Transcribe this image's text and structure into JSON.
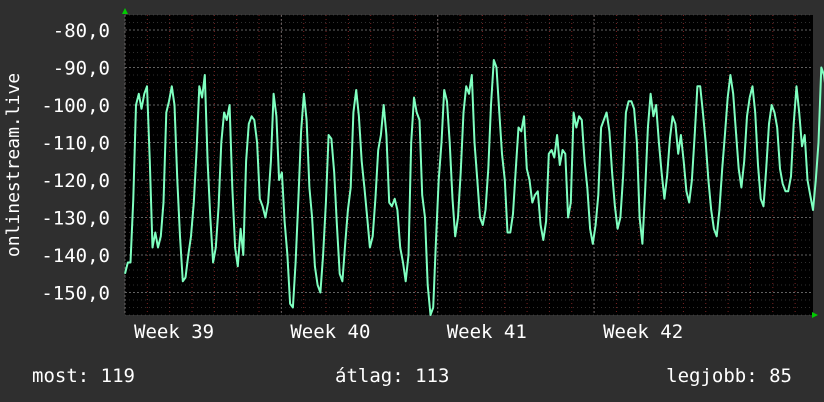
{
  "chart_data": {
    "type": "line",
    "ylabel": "onlinestream.live",
    "ylim": [
      -156,
      -76
    ],
    "y_ticks": [
      -80,
      -90,
      -100,
      -110,
      -120,
      -130,
      -140,
      -150
    ],
    "y_tick_labels": [
      "-80,0",
      "-90,0",
      "-100,0",
      "-110,0",
      "-120,0",
      "-130,0",
      "-140,0",
      "-150,0"
    ],
    "x_range": [
      0,
      4.4
    ],
    "x_ticks": [
      {
        "x": 0,
        "label": "Week 39"
      },
      {
        "x": 1,
        "label": "Week 40"
      },
      {
        "x": 2,
        "label": "Week 41"
      },
      {
        "x": 3,
        "label": "Week 42"
      }
    ],
    "grid": true,
    "series": [
      {
        "color": "#7fffc0",
        "x_step": 0.0176,
        "values": [
          -145,
          -142,
          -142,
          -125,
          -100,
          -97,
          -101,
          -97,
          -95,
          -115,
          -138,
          -134,
          -138,
          -135,
          -126,
          -102,
          -99,
          -95,
          -100,
          -120,
          -135,
          -147,
          -146,
          -140,
          -135,
          -126,
          -112,
          -95,
          -98,
          -92,
          -115,
          -130,
          -142,
          -138,
          -127,
          -110,
          -102,
          -104,
          -100,
          -122,
          -138,
          -143,
          -133,
          -140,
          -115,
          -105,
          -103,
          -104,
          -110,
          -125,
          -127,
          -130,
          -126,
          -115,
          -97,
          -103,
          -120,
          -118,
          -131,
          -140,
          -153,
          -154,
          -142,
          -125,
          -107,
          -97,
          -104,
          -122,
          -130,
          -143,
          -148,
          -150,
          -140,
          -126,
          -108,
          -109,
          -118,
          -132,
          -145,
          -147,
          -137,
          -128,
          -122,
          -102,
          -96,
          -103,
          -115,
          -122,
          -130,
          -138,
          -135,
          -125,
          -112,
          -108,
          -100,
          -108,
          -126,
          -127,
          -125,
          -128,
          -138,
          -142,
          -147,
          -140,
          -110,
          -98,
          -102,
          -104,
          -124,
          -130,
          -148,
          -156,
          -154,
          -136,
          -120,
          -110,
          -96,
          -99,
          -110,
          -125,
          -135,
          -130,
          -118,
          -102,
          -95,
          -97,
          -92,
          -110,
          -120,
          -130,
          -132,
          -128,
          -117,
          -100,
          -88,
          -90,
          -102,
          -113,
          -120,
          -134,
          -134,
          -129,
          -117,
          -106,
          -107,
          -103,
          -117,
          -120,
          -126,
          -124,
          -123,
          -132,
          -136,
          -131,
          -113,
          -112,
          -114,
          -108,
          -116,
          -112,
          -113,
          -130,
          -126,
          -102,
          -106,
          -103,
          -104,
          -115,
          -122,
          -133,
          -137,
          -132,
          -124,
          -106,
          -104,
          -102,
          -107,
          -118,
          -127,
          -133,
          -130,
          -119,
          -102,
          -99,
          -99,
          -101,
          -110,
          -130,
          -137,
          -123,
          -106,
          -97,
          -103,
          -100,
          -110,
          -118,
          -125,
          -119,
          -109,
          -103,
          -105,
          -113,
          -108,
          -115,
          -123,
          -126,
          -120,
          -108,
          -95,
          -95,
          -102,
          -110,
          -120,
          -128,
          -133,
          -135,
          -128,
          -117,
          -108,
          -98,
          -92,
          -97,
          -107,
          -117,
          -122,
          -115,
          -103,
          -98,
          -95,
          -102,
          -116,
          -125,
          -127,
          -117,
          -105,
          -100,
          -102,
          -106,
          -117,
          -121,
          -123,
          -123,
          -119,
          -105,
          -95,
          -102,
          -111,
          -108,
          -120,
          -124,
          -128,
          -120,
          -110,
          -90,
          -92,
          -98,
          -110,
          -120,
          -115,
          -115,
          -110,
          -118,
          -122,
          -121,
          -108,
          -102,
          -97,
          -100,
          -107,
          -114,
          -120,
          -123,
          -119,
          -110,
          -98,
          -99,
          -95,
          -105,
          -113,
          -123,
          -121,
          -111,
          -99,
          -91,
          -98,
          -106,
          -114,
          -121,
          -124,
          -121,
          -108,
          -99,
          -95,
          -105,
          -118,
          -122,
          -117,
          -108,
          -95,
          -93,
          -95,
          -103,
          -112,
          -118,
          -127,
          -130,
          -129,
          -120,
          -110,
          -96,
          -91,
          -93,
          -102,
          -112,
          -118,
          -119,
          -114,
          -109,
          -102,
          -94,
          -96,
          -102,
          -110,
          -118,
          -124,
          -126,
          -120,
          -113,
          -104,
          -94,
          -91,
          -88,
          -92,
          -100,
          -110,
          -120,
          -128,
          -132,
          -122,
          -113,
          -102,
          -92,
          -90,
          -95,
          -104,
          -114,
          -122,
          -128,
          -130,
          -126,
          -118,
          -108,
          -97,
          -91,
          -94,
          -100,
          -108,
          -118,
          -122,
          -122,
          -117,
          -108,
          -99,
          -89,
          -90,
          -100,
          -108,
          -115,
          -126,
          -142,
          -140,
          -135,
          -130,
          -125,
          -119
        ]
      }
    ]
  },
  "stats": {
    "current": "most: 119",
    "average": "átlag: 113",
    "best": "legjobb: 85"
  },
  "colors": {
    "background": "#2f2f2f",
    "plot_background": "#000000",
    "grid_major": "#6a6a6a",
    "grid_minor": "#e04040",
    "line": "#7fffc0",
    "axis_arrow": "#00cc00"
  }
}
